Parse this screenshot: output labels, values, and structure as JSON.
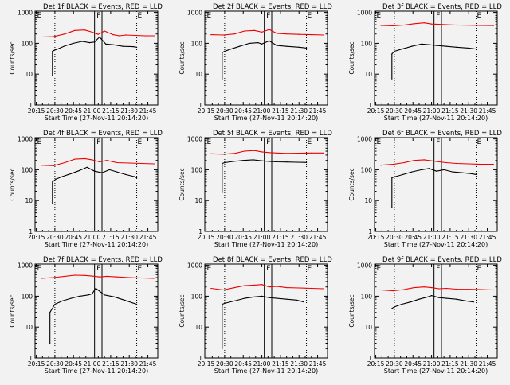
{
  "figure": {
    "xlabel": "Start Time (27-Nov-11 20:14:20)",
    "ylabel": "Counts/sec",
    "x_ticks": [
      "20:15",
      "20:30",
      "20:45",
      "21:00",
      "21:15",
      "21:30",
      "21:45"
    ],
    "y_ticks": [
      "1",
      "10",
      "100",
      "1000"
    ],
    "colors": {
      "events": "#000000",
      "lld": "#ee0000",
      "background": "#f2f2f2"
    }
  },
  "chart_data": [
    {
      "type": "line",
      "title": "Det 1f BLACK = Events, RED = LLD",
      "flags": [
        "E",
        "F",
        "E"
      ],
      "xlim": [
        "20:14",
        "21:53"
      ],
      "ylim": [
        1,
        1100
      ],
      "yscale": "log",
      "series": [
        {
          "x": [
            "20:19",
            "20:29",
            "20:38",
            "20:46",
            "20:54",
            "21:00",
            "21:05",
            "21:10",
            "21:17",
            "21:22",
            "21:27",
            "21:35",
            "21:43",
            "21:50"
          ],
          "values": [
            160,
            165,
            200,
            260,
            270,
            230,
            195,
            250,
            190,
            175,
            185,
            180,
            175,
            175
          ]
        },
        {
          "x": [
            "20:28",
            "20:28",
            "20:29",
            "20:32",
            "20:38",
            "20:45",
            "20:52",
            "20:58",
            "21:02",
            "21:06",
            "21:11",
            "21:17",
            "21:25",
            "21:33",
            "21:36"
          ],
          "values": [
            9,
            55,
            58,
            65,
            82,
            100,
            115,
            105,
            110,
            160,
            95,
            90,
            80,
            78,
            75
          ]
        }
      ]
    },
    {
      "type": "line",
      "title": "Det 2f BLACK = Events, RED = LLD",
      "flags": [
        "E",
        "F",
        "E"
      ],
      "xlim": [
        "20:14",
        "21:53"
      ],
      "ylim": [
        1,
        1100
      ],
      "yscale": "log",
      "series": [
        {
          "x": [
            "20:19",
            "20:29",
            "20:38",
            "20:46",
            "20:54",
            "21:00",
            "21:06",
            "21:12",
            "21:20",
            "21:30",
            "21:40",
            "21:50"
          ],
          "values": [
            190,
            185,
            200,
            250,
            260,
            230,
            280,
            210,
            200,
            195,
            190,
            185
          ]
        },
        {
          "x": [
            "20:28",
            "20:28",
            "20:30",
            "20:35",
            "20:42",
            "20:50",
            "20:57",
            "21:00",
            "21:06",
            "21:12",
            "21:20",
            "21:30",
            "21:36"
          ],
          "values": [
            7,
            50,
            55,
            65,
            80,
            100,
            105,
            95,
            120,
            85,
            80,
            75,
            70
          ]
        }
      ]
    },
    {
      "type": "line",
      "title": "Det 3f BLACK = Events, RED = LLD",
      "flags": [
        "E",
        "F",
        "E"
      ],
      "xlim": [
        "20:14",
        "21:53"
      ],
      "ylim": [
        1,
        1100
      ],
      "yscale": "log",
      "series": [
        {
          "x": [
            "20:19",
            "20:29",
            "20:38",
            "20:46",
            "20:54",
            "21:00",
            "21:06",
            "21:12",
            "21:20",
            "21:30",
            "21:40",
            "21:50"
          ],
          "values": [
            380,
            370,
            390,
            430,
            460,
            420,
            410,
            400,
            390,
            385,
            380,
            375
          ]
        },
        {
          "x": [
            "20:28",
            "20:28",
            "20:30",
            "20:36",
            "20:44",
            "20:52",
            "20:58",
            "21:04",
            "21:12",
            "21:20",
            "21:30",
            "21:36"
          ],
          "values": [
            7,
            45,
            55,
            65,
            80,
            95,
            90,
            85,
            80,
            75,
            70,
            65
          ]
        }
      ]
    },
    {
      "type": "line",
      "title": "Det 4f BLACK = Events, RED = LLD",
      "flags": [
        "E",
        "F",
        "E"
      ],
      "xlim": [
        "20:14",
        "21:53"
      ],
      "ylim": [
        1,
        1100
      ],
      "yscale": "log",
      "series": [
        {
          "x": [
            "20:19",
            "20:29",
            "20:38",
            "20:46",
            "20:54",
            "21:00",
            "21:06",
            "21:12",
            "21:20",
            "21:30",
            "21:40",
            "21:50"
          ],
          "values": [
            140,
            135,
            170,
            220,
            230,
            210,
            180,
            200,
            170,
            165,
            160,
            155
          ]
        },
        {
          "x": [
            "20:28",
            "20:28",
            "20:31",
            "20:36",
            "20:43",
            "20:50",
            "20:56",
            "21:02",
            "21:08",
            "21:14",
            "21:20",
            "21:27",
            "21:34",
            "21:36"
          ],
          "values": [
            8,
            40,
            50,
            60,
            75,
            95,
            120,
            90,
            80,
            100,
            85,
            70,
            60,
            55
          ]
        }
      ]
    },
    {
      "type": "line",
      "title": "Det 5f BLACK = Events, RED = LLD",
      "flags": [
        "E",
        "F",
        "E"
      ],
      "xlim": [
        "20:14",
        "21:53"
      ],
      "ylim": [
        1,
        1100
      ],
      "yscale": "log",
      "series": [
        {
          "x": [
            "20:19",
            "20:29",
            "20:38",
            "20:46",
            "20:54",
            "21:00",
            "21:06",
            "21:12",
            "21:20",
            "21:30",
            "21:40",
            "21:50"
          ],
          "values": [
            330,
            320,
            340,
            400,
            420,
            380,
            360,
            350,
            340,
            345,
            350,
            350
          ]
        },
        {
          "x": [
            "20:28",
            "20:28",
            "20:30",
            "20:37",
            "20:45",
            "20:53",
            "21:00",
            "21:06",
            "21:12",
            "21:20",
            "21:28",
            "21:36"
          ],
          "values": [
            18,
            160,
            170,
            185,
            200,
            210,
            195,
            185,
            180,
            178,
            175,
            172
          ]
        }
      ]
    },
    {
      "type": "line",
      "title": "Det 6f BLACK = Events, RED = LLD",
      "flags": [
        "E",
        "F",
        "E"
      ],
      "xlim": [
        "20:14",
        "21:53"
      ],
      "ylim": [
        1,
        1100
      ],
      "yscale": "log",
      "series": [
        {
          "x": [
            "20:19",
            "20:29",
            "20:38",
            "20:46",
            "20:54",
            "21:00",
            "21:06",
            "21:12",
            "21:20",
            "21:30",
            "21:40",
            "21:50"
          ],
          "values": [
            140,
            150,
            170,
            200,
            210,
            195,
            180,
            170,
            160,
            155,
            150,
            150
          ]
        },
        {
          "x": [
            "20:28",
            "20:28",
            "20:31",
            "20:37",
            "20:44",
            "20:52",
            "20:58",
            "21:04",
            "21:10",
            "21:17",
            "21:25",
            "21:32",
            "21:36"
          ],
          "values": [
            6,
            55,
            60,
            70,
            85,
            100,
            110,
            90,
            100,
            85,
            80,
            75,
            70
          ]
        }
      ]
    },
    {
      "type": "line",
      "title": "Det 7f BLACK = Events, RED = LLD",
      "flags": [
        "E",
        "F",
        "E"
      ],
      "xlim": [
        "20:14",
        "21:53"
      ],
      "ylim": [
        1,
        1100
      ],
      "yscale": "log",
      "series": [
        {
          "x": [
            "20:19",
            "20:29",
            "20:38",
            "20:46",
            "20:54",
            "21:00",
            "21:06",
            "21:12",
            "21:20",
            "21:30",
            "21:40",
            "21:50"
          ],
          "values": [
            380,
            400,
            440,
            480,
            470,
            450,
            420,
            440,
            420,
            400,
            390,
            380
          ]
        },
        {
          "x": [
            "20:26",
            "20:26",
            "20:30",
            "20:36",
            "20:43",
            "20:50",
            "20:57",
            "21:00",
            "21:03",
            "21:10",
            "21:18",
            "21:26",
            "21:33",
            "21:36"
          ],
          "values": [
            3,
            30,
            55,
            70,
            85,
            100,
            110,
            120,
            180,
            110,
            95,
            75,
            60,
            55
          ]
        }
      ]
    },
    {
      "type": "line",
      "title": "Det 8f BLACK = Events, RED = LLD",
      "flags": [
        "E",
        "F",
        "E"
      ],
      "xlim": [
        "20:14",
        "21:53"
      ],
      "ylim": [
        1,
        1100
      ],
      "yscale": "log",
      "series": [
        {
          "x": [
            "20:19",
            "20:29",
            "20:38",
            "20:46",
            "20:54",
            "21:00",
            "21:06",
            "21:12",
            "21:20",
            "21:30",
            "21:40",
            "21:50"
          ],
          "values": [
            180,
            160,
            190,
            220,
            230,
            240,
            200,
            210,
            190,
            185,
            180,
            175
          ]
        },
        {
          "x": [
            "20:28",
            "20:28",
            "20:31",
            "20:38",
            "20:46",
            "20:54",
            "21:00",
            "21:06",
            "21:12",
            "21:20",
            "21:28",
            "21:34"
          ],
          "values": [
            2,
            55,
            60,
            70,
            85,
            95,
            100,
            90,
            85,
            80,
            75,
            65
          ]
        }
      ]
    },
    {
      "type": "line",
      "title": "Det 9f BLACK = Events, RED = LLD",
      "flags": [
        "E",
        "F",
        "E"
      ],
      "xlim": [
        "20:14",
        "21:53"
      ],
      "ylim": [
        1,
        1100
      ],
      "yscale": "log",
      "series": [
        {
          "x": [
            "20:19",
            "20:29",
            "20:38",
            "20:46",
            "20:54",
            "21:00",
            "21:06",
            "21:12",
            "21:20",
            "21:30",
            "21:40",
            "21:50"
          ],
          "values": [
            160,
            150,
            165,
            190,
            200,
            190,
            175,
            180,
            170,
            168,
            165,
            160
          ]
        },
        {
          "x": [
            "20:28",
            "20:30",
            "20:36",
            "20:43",
            "20:50",
            "20:57",
            "21:00",
            "21:06",
            "21:12",
            "21:20",
            "21:28",
            "21:34"
          ],
          "values": [
            40,
            45,
            55,
            65,
            80,
            95,
            105,
            90,
            85,
            80,
            70,
            65
          ]
        }
      ]
    }
  ]
}
